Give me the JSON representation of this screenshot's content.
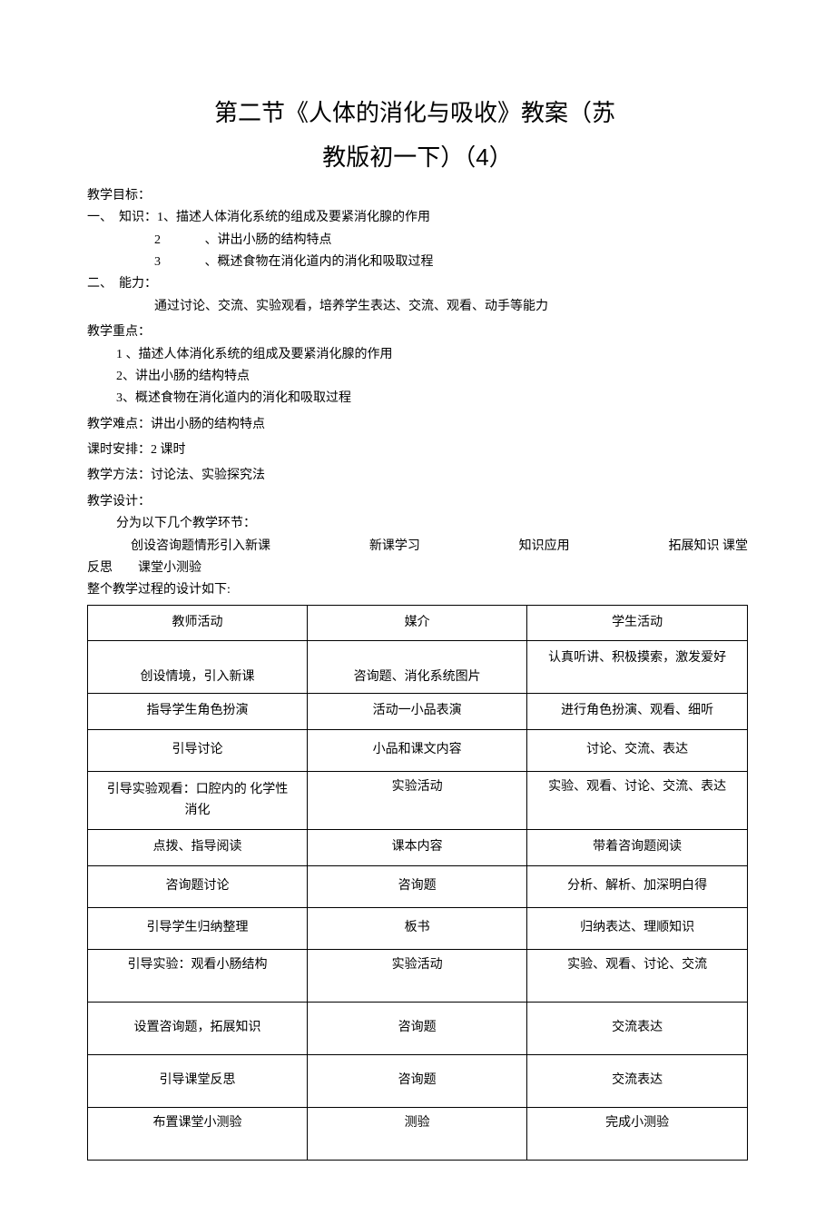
{
  "title_line1": "第二节《人体的消化与吸收》教案（苏",
  "title_line2": "教版初一下）（4）",
  "goals_label": "教学目标：",
  "goals_k_label": "一、　知识：1、描述人体消化系统的组成及要紧消化腺的作用",
  "goals_k2_num": "2",
  "goals_k2_txt": "、讲出小肠的结构特点",
  "goals_k3_num": "3",
  "goals_k3_txt": "、概述食物在消化道内的消化和吸取过程",
  "goals_a_label": "二、　能力：",
  "goals_a_txt": "通过讨论、交流、实验观看，培养学生表达、交流、观看、动手等能力",
  "keypoints_label": "教学重点：",
  "kp1": "1 、描述人体消化系统的组成及要紧消化腺的作用",
  "kp2": "2、讲出小肠的结构特点",
  "kp3": "3、概述食物在消化道内的消化和吸取过程",
  "difficulty": "教学难点：讲出小肠的结构特点",
  "schedule": "课时安排：2 课时",
  "method": "教学方法：讨论法、实验探究法",
  "design_label": "教学设计：",
  "design_intro": "分为以下几个教学环节：",
  "flow": {
    "a": "创设咨询题情形引入新课",
    "b": "新课学习",
    "c": "知识应用",
    "d": "拓展知识  课堂"
  },
  "flow_wrap": "反思　　课堂小测验",
  "process_label": "整个教学过程的设计如下:",
  "table": {
    "headers": [
      "教师活动",
      "媒介",
      "学生活动"
    ],
    "rows": [
      {
        "h": "tall",
        "c": [
          "创设情境，引入新课",
          "咨询题、消化系统图片",
          "认真听讲、积极摸索，激发爱好"
        ],
        "s3align": "top"
      },
      {
        "h": "norm",
        "c": [
          "指导学生角色扮演",
          "活动一小品表演",
          "进行角色扮演、观看、细听"
        ]
      },
      {
        "h": "mid",
        "c": [
          "引导讨论",
          "小品和课文内容",
          "讨论、交流、表达"
        ]
      },
      {
        "h": "tall",
        "c": [
          "引导实验观看：口腔内的 化学性消化",
          "实验活动",
          "实验、观看、讨论、交流、表达"
        ],
        "s2align": "top",
        "s3align": "top",
        "multi1": true
      },
      {
        "h": "norm",
        "c": [
          "点拨、指导阅读",
          "课本内容",
          "带着咨询题阅读"
        ]
      },
      {
        "h": "mid",
        "c": [
          "咨询题讨论",
          "咨询题",
          "分析、解析、加深明白得"
        ]
      },
      {
        "h": "mid",
        "c": [
          "引导学生归纳整理",
          "板书",
          "归纳表达、理顺知识"
        ]
      },
      {
        "h": "tall",
        "c": [
          "引导实验：观看小肠结构",
          "实验活动",
          "实验、观看、讨论、交流"
        ],
        "allalign": "top"
      },
      {
        "h": "tall",
        "c": [
          "设置咨询题，拓展知识",
          "咨询题",
          "交流表达"
        ]
      },
      {
        "h": "tall",
        "c": [
          "引导课堂反思",
          "咨询题",
          "交流表达"
        ]
      },
      {
        "h": "tall",
        "c": [
          "布置课堂小测验",
          "测验",
          "完成小测验"
        ],
        "allalign": "top"
      }
    ],
    "col_widths": [
      "33.3%",
      "33.3%",
      "33.4%"
    ]
  }
}
